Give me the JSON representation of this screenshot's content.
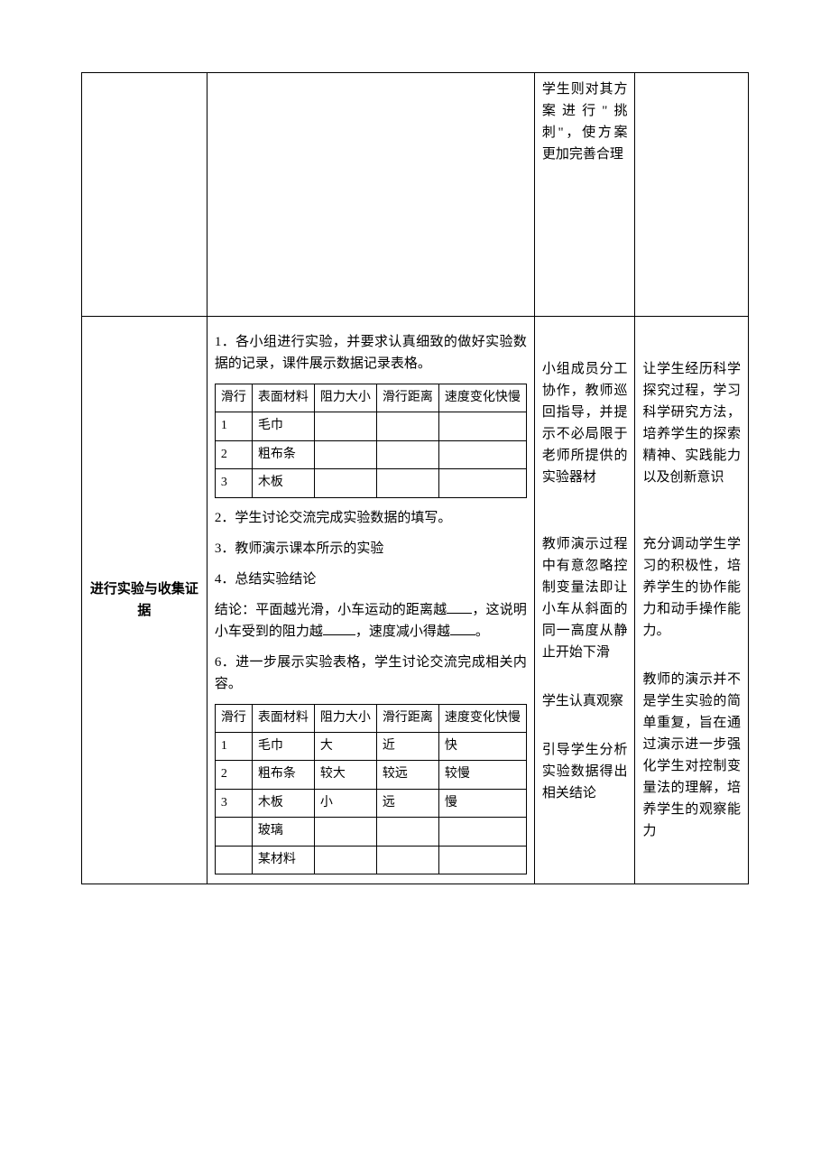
{
  "row1": {
    "activity_text": "学生则对其方案进行\"挑刺\"，使方案更加完善合理"
  },
  "row2": {
    "left_title": "进行实验与收集证据",
    "para1": "1．各小组进行实验，并要求认真细致的做好实验数据的记录，课件展示数据记录表格。",
    "table1": {
      "headers": [
        "滑行",
        "表面材料",
        "阻力大小",
        "滑行距离",
        "速度变化快慢"
      ],
      "rows": [
        [
          "1",
          "毛巾",
          "",
          "",
          ""
        ],
        [
          "2",
          "粗布条",
          "",
          "",
          ""
        ],
        [
          "3",
          "木板",
          "",
          "",
          ""
        ]
      ]
    },
    "para2": "2．学生讨论交流完成实验数据的填写。",
    "para3": "3．教师演示课本所示的实验",
    "para4": "4．总结实验结论",
    "para5_pre": "结论：平面越光滑，小车运动的距离越",
    "para5_mid1": "，这说明小车受到的阻力越",
    "para5_mid2": "，速度减小得越",
    "para5_end": "。",
    "para6": "6．进一步展示实验表格，学生讨论交流完成相关内容。",
    "table2": {
      "headers": [
        "滑行",
        "表面材料",
        "阻力大小",
        "滑行距离",
        "速度变化快慢"
      ],
      "rows": [
        [
          "1",
          "毛巾",
          "大",
          "近",
          "快"
        ],
        [
          "2",
          "粗布条",
          "较大",
          "较远",
          "较慢"
        ],
        [
          "3",
          "木板",
          "小",
          "远",
          "慢"
        ],
        [
          "",
          "玻璃",
          "",
          "",
          ""
        ],
        [
          "",
          "某材料",
          "",
          "",
          ""
        ]
      ]
    },
    "activity1": "小组成员分工协作，教师巡回指导，并提示不必局限于老师所提供的实验器材",
    "activity2": "教师演示过程中有意忽略控制变量法即让小车从斜面的同一高度从静止开始下滑",
    "activity3": "学生认真观察",
    "activity4": "引导学生分析实验数据得出相关结论",
    "intent1": "让学生经历科学探究过程，学习科学研究方法，培养学生的探索精神、实践能力以及创新意识",
    "intent2": "充分调动学生学习的积极性，培养学生的协作能力和动手操作能力。",
    "intent3": "教师的演示并不是学生实验的简单重复，旨在通过演示进一步强化学生对控制变量法的理解，培养学生的观察能力"
  }
}
